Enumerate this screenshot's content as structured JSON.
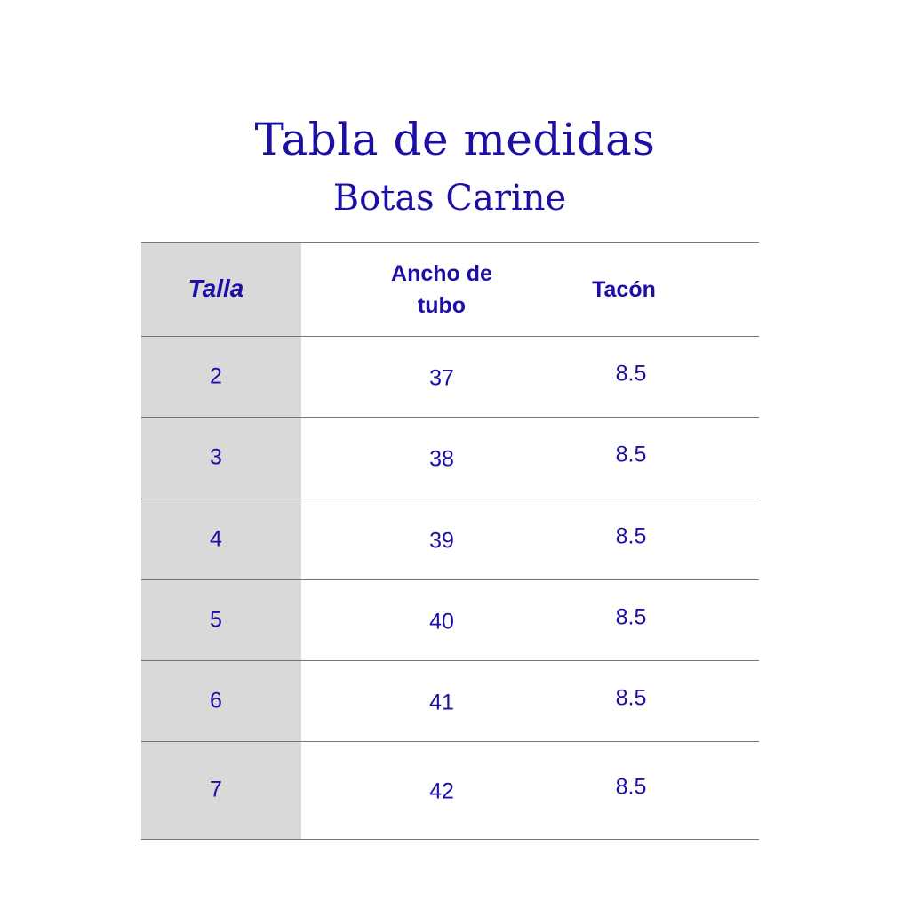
{
  "title": "Tabla de medidas",
  "subtitle": "Botas Carine",
  "colors": {
    "text": "#1c0fa6",
    "first_column_bg": "#d9d9d9",
    "rule": "#7a7370"
  },
  "table": {
    "headers": [
      "Talla",
      "Ancho de tubo",
      "Tacón"
    ],
    "header_lines": {
      "col2_a": "Ancho de",
      "col2_b": "tubo"
    },
    "rows": [
      [
        "2",
        "37",
        "8.5"
      ],
      [
        "3",
        "38",
        "8.5"
      ],
      [
        "4",
        "39",
        "8.5"
      ],
      [
        "5",
        "40",
        "8.5"
      ],
      [
        "6",
        "41",
        "8.5"
      ],
      [
        "7",
        "42",
        "8.5"
      ]
    ]
  }
}
